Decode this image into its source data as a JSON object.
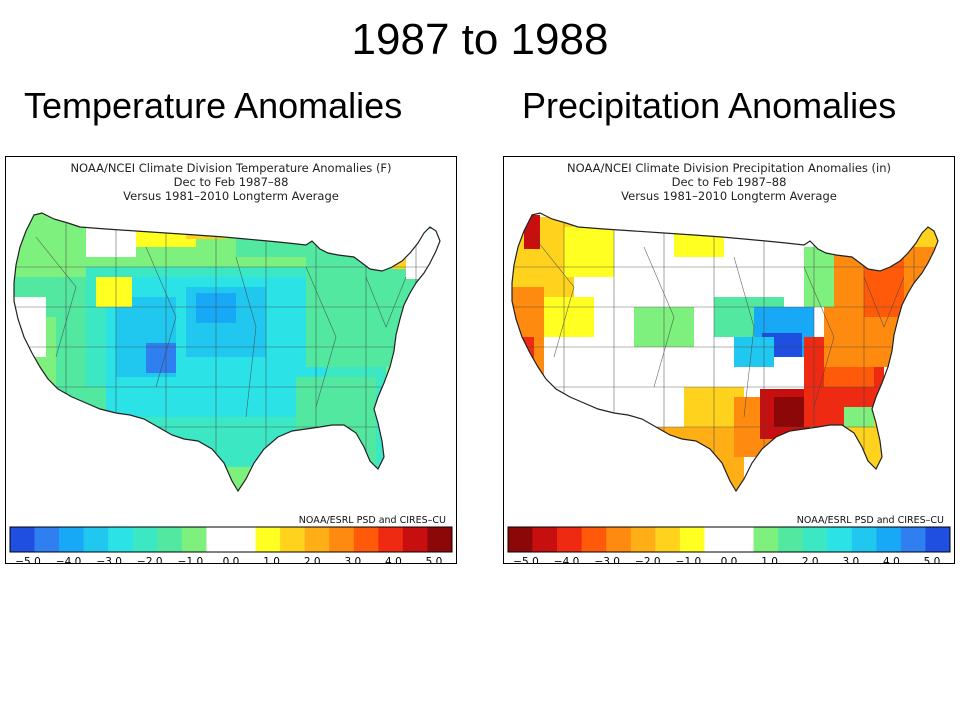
{
  "slide": {
    "title": "1987 to 1988"
  },
  "panels": {
    "temperature": {
      "heading": "Temperature Anomalies",
      "caption_line1": "NOAA/NCEI Climate Division Temperature Anomalies (F)",
      "caption_line2": "Dec to Feb 1987–88",
      "caption_line3": "Versus 1981–2010 Longterm Average",
      "credit": "NOAA/ESRL PSD and CIRES–CU",
      "legend_colors": [
        "#1f4fe0",
        "#2f7ff0",
        "#17a9f5",
        "#20c8f0",
        "#2be2e6",
        "#3ce8c4",
        "#52e8a0",
        "#7ef07e",
        "#ffffff",
        "#ffffff",
        "#ffff22",
        "#ffd21e",
        "#ffae16",
        "#ff8a10",
        "#ff5a0a",
        "#ee2a12",
        "#c80f0f",
        "#8c0707"
      ],
      "tick_labels": [
        "−5.0",
        "−4.0",
        "−3.0",
        "−2.0",
        "−1.0",
        "0.0",
        "1.0",
        "2.0",
        "3.0",
        "4.0",
        "5.0"
      ]
    },
    "precipitation": {
      "heading": "Precipitation Anomalies",
      "caption_line1": "NOAA/NCEI Climate Division Precipitation Anomalies (in)",
      "caption_line2": "Dec to Feb 1987–88",
      "caption_line3": "Versus 1981–2010 Longterm Average",
      "credit": "NOAA/ESRL PSD and CIRES–CU",
      "legend_colors": [
        "#8c0707",
        "#c80f0f",
        "#ee2a12",
        "#ff5a0a",
        "#ff8a10",
        "#ffae16",
        "#ffd21e",
        "#ffff22",
        "#ffffff",
        "#ffffff",
        "#7ef07e",
        "#52e8a0",
        "#3ce8c4",
        "#2be2e6",
        "#20c8f0",
        "#17a9f5",
        "#2f7ff0",
        "#1f4fe0"
      ],
      "tick_labels": [
        "−5.0",
        "−4.0",
        "−3.0",
        "−2.0",
        "−1.0",
        "0.0",
        "1.0",
        "2.0",
        "3.0",
        "4.0",
        "5.0"
      ]
    }
  }
}
